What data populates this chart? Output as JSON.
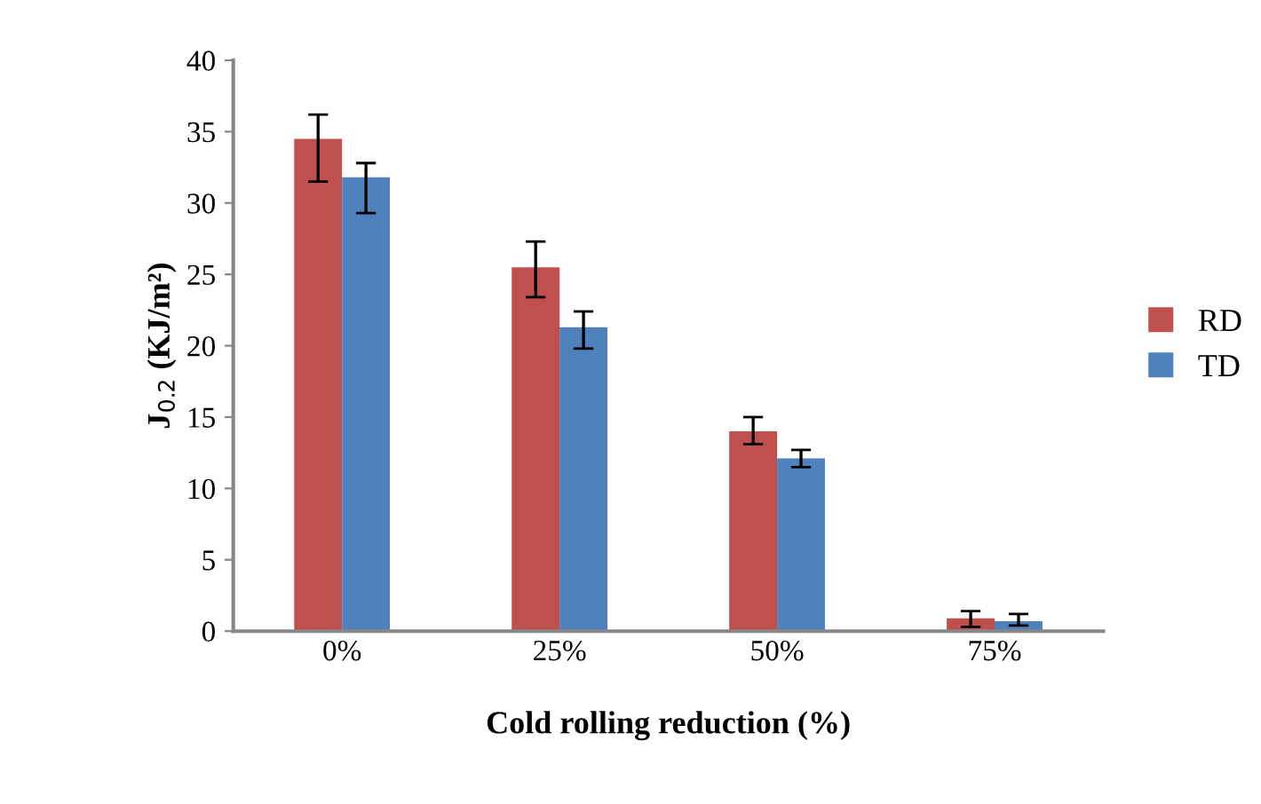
{
  "chart_data": {
    "type": "bar",
    "xlabel": "Cold rolling reduction (%)",
    "ylabel": "J$_{0.2}$ (KJ/m²)",
    "categories": [
      "0%",
      "25%",
      "50%",
      "75%"
    ],
    "series": [
      {
        "name": "RD",
        "color": "#c0504d",
        "values": [
          34.5,
          25.5,
          14.0,
          0.9
        ],
        "errors": [
          [
            31.5,
            36.2
          ],
          [
            23.4,
            27.3
          ],
          [
            13.1,
            15.0
          ],
          [
            0.3,
            1.4
          ]
        ]
      },
      {
        "name": "TD",
        "color": "#4f81bd",
        "values": [
          31.8,
          21.3,
          12.1,
          0.7
        ],
        "errors": [
          [
            29.3,
            32.8
          ],
          [
            19.8,
            22.4
          ],
          [
            11.5,
            12.7
          ],
          [
            0.4,
            1.2
          ]
        ]
      }
    ],
    "ylim": [
      0,
      40
    ],
    "yticks": [
      0,
      5,
      10,
      15,
      20,
      25,
      30,
      35,
      40
    ],
    "grid": false,
    "legend": "right"
  }
}
